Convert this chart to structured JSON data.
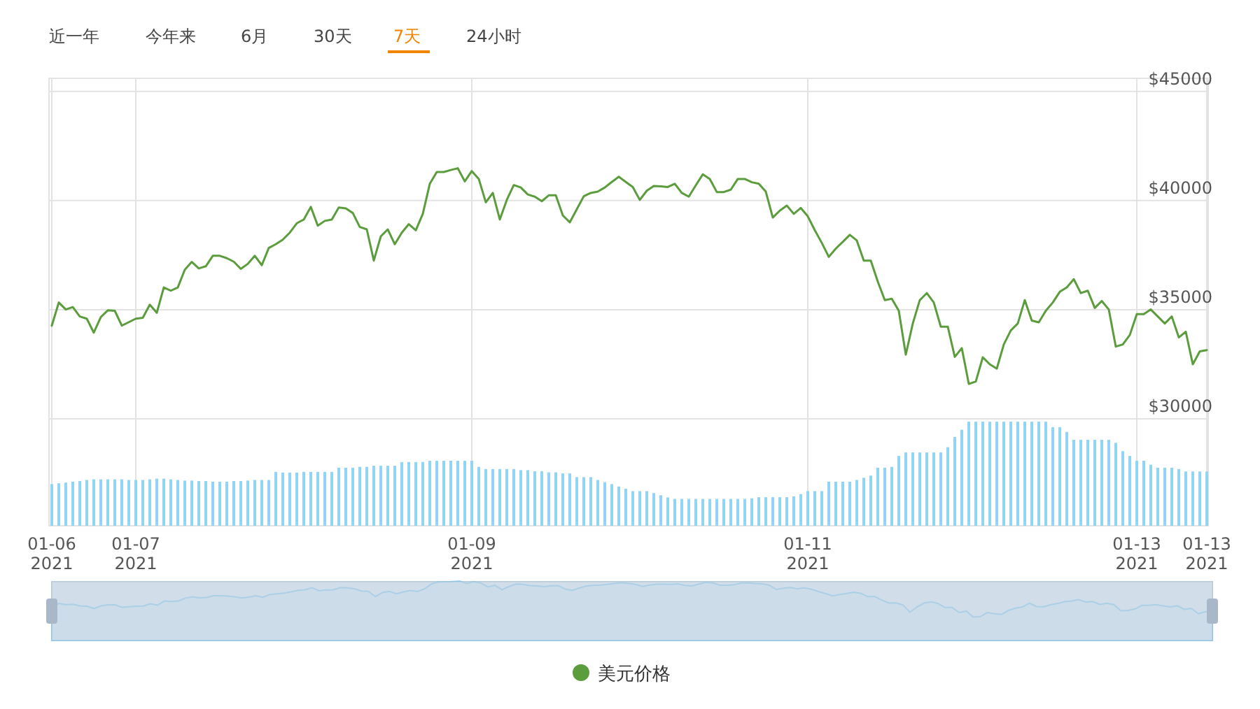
{
  "chart_data": {
    "type": "line",
    "annotations": [
      "近一年",
      "今年来",
      "6月",
      "30天",
      "7天",
      "24小时"
    ],
    "categories": [
      "01-06\n2021",
      null,
      null,
      null,
      null,
      null,
      null,
      null,
      null,
      null,
      null,
      null,
      "01-07\n2021",
      null,
      null,
      null,
      null,
      null,
      null,
      null,
      null,
      null,
      null,
      null,
      null,
      null,
      null,
      null,
      null,
      null,
      null,
      null,
      null,
      null,
      null,
      null,
      null,
      null,
      null,
      null,
      null,
      null,
      null,
      null,
      null,
      null,
      null,
      null,
      null,
      null,
      null,
      null,
      null,
      null,
      null,
      null,
      null,
      null,
      null,
      null,
      "01-09\n2021",
      null,
      null,
      null,
      null,
      null,
      null,
      null,
      null,
      null,
      null,
      null,
      null,
      null,
      null,
      null,
      null,
      null,
      null,
      null,
      null,
      null,
      null,
      null,
      null,
      null,
      null,
      null,
      null,
      null,
      null,
      null,
      null,
      null,
      null,
      null,
      null,
      null,
      null,
      null,
      null,
      null,
      null,
      null,
      null,
      null,
      null,
      null,
      "01-11\n2021",
      null,
      null,
      null,
      null,
      null,
      null,
      null,
      null,
      null,
      null,
      null,
      null,
      null,
      null,
      null,
      null,
      null,
      null,
      null,
      null,
      null,
      null,
      null,
      null,
      null,
      null,
      null,
      null,
      null,
      null,
      null,
      null,
      null,
      null,
      null,
      null,
      null,
      null,
      null,
      null,
      null,
      null,
      null,
      null,
      null,
      null,
      "01-13\n2021",
      null,
      null,
      null,
      null,
      null,
      null,
      null,
      null,
      null,
      "01-13\n2021"
    ],
    "ylim": [
      25100,
      45600
    ],
    "yticks": [
      {
        "value": 30000,
        "label": "$30000"
      },
      {
        "value": 35000,
        "label": "$35000"
      },
      {
        "value": 40000,
        "label": "$40000"
      },
      {
        "value": 45000,
        "label": "$45000"
      }
    ],
    "grid": true,
    "legend": "bottom",
    "marker": "none",
    "series": [
      {
        "type": "bar",
        "color": "#92d4f5",
        "values": [
          27010,
          27050,
          27080,
          27120,
          27150,
          27200,
          27230,
          27230,
          27230,
          27230,
          27230,
          27200,
          27200,
          27200,
          27230,
          27260,
          27260,
          27230,
          27200,
          27170,
          27170,
          27150,
          27150,
          27120,
          27120,
          27120,
          27150,
          27150,
          27170,
          27200,
          27200,
          27200,
          27570,
          27540,
          27540,
          27540,
          27570,
          27570,
          27570,
          27570,
          27570,
          27760,
          27760,
          27760,
          27800,
          27800,
          27850,
          27850,
          27850,
          27850,
          28020,
          28020,
          28020,
          28020,
          28080,
          28080,
          28080,
          28080,
          28080,
          28080,
          28080,
          27800,
          27700,
          27700,
          27700,
          27700,
          27700,
          27650,
          27650,
          27600,
          27600,
          27550,
          27550,
          27500,
          27500,
          27330,
          27330,
          27330,
          27200,
          27100,
          27010,
          26900,
          26800,
          26690,
          26690,
          26690,
          26600,
          26500,
          26400,
          26330,
          26330,
          26330,
          26330,
          26330,
          26330,
          26330,
          26330,
          26330,
          26330,
          26330,
          26360,
          26410,
          26410,
          26410,
          26410,
          26410,
          26450,
          26550,
          26690,
          26690,
          26690,
          27120,
          27120,
          27120,
          27120,
          27200,
          27300,
          27400,
          27760,
          27760,
          27800,
          28300,
          28460,
          28460,
          28460,
          28460,
          28460,
          28460,
          28700,
          29170,
          29500,
          29870,
          29870,
          29870,
          29870,
          29870,
          29870,
          29870,
          29870,
          29870,
          29870,
          29870,
          29870,
          29620,
          29620,
          29400,
          29040,
          29040,
          29040,
          29040,
          29040,
          29040,
          28900,
          28520,
          28300,
          28080,
          28080,
          27900,
          27760,
          27760,
          27760,
          27700,
          27590,
          27590,
          27590,
          27590
        ]
      },
      {
        "name": "美元价格",
        "color": "#5b9c3c",
        "values": [
          34270,
          35330,
          35010,
          35120,
          34690,
          34590,
          33950,
          34660,
          34970,
          34950,
          34270,
          34430,
          34590,
          34630,
          35230,
          34860,
          36020,
          35870,
          36020,
          36830,
          37190,
          36890,
          36990,
          37470,
          37470,
          37360,
          37200,
          36870,
          37100,
          37470,
          37040,
          37830,
          38000,
          38210,
          38530,
          38960,
          39130,
          39710,
          38850,
          39070,
          39130,
          39680,
          39640,
          39430,
          38790,
          38680,
          37250,
          38360,
          38680,
          38000,
          38530,
          38920,
          38640,
          39390,
          40770,
          41310,
          41310,
          41400,
          41480,
          40880,
          41350,
          40990,
          39920,
          40350,
          39130,
          40030,
          40710,
          40600,
          40280,
          40180,
          39970,
          40240,
          40240,
          39320,
          39000,
          39600,
          40200,
          40350,
          40410,
          40600,
          40850,
          41090,
          40850,
          40620,
          40030,
          40450,
          40670,
          40650,
          40620,
          40770,
          40350,
          40180,
          40700,
          41200,
          40990,
          40390,
          40390,
          40500,
          40990,
          40990,
          40840,
          40770,
          40410,
          39220,
          39540,
          39770,
          39390,
          39660,
          39280,
          38640,
          38060,
          37420,
          37800,
          38110,
          38430,
          38170,
          37250,
          37250,
          36290,
          35440,
          35500,
          34950,
          32940,
          34370,
          35440,
          35760,
          35330,
          34220,
          34220,
          32840,
          33240,
          31600,
          31710,
          32820,
          32500,
          32300,
          33410,
          34050,
          34370,
          35440,
          34500,
          34420,
          34950,
          35330,
          35820,
          36020,
          36400,
          35760,
          35870,
          35080,
          35400,
          35010,
          33310,
          33410,
          33840,
          34800,
          34800,
          35010,
          34690,
          34370,
          34690,
          33730,
          33990,
          32500,
          33090,
          33150
        ]
      }
    ]
  }
}
